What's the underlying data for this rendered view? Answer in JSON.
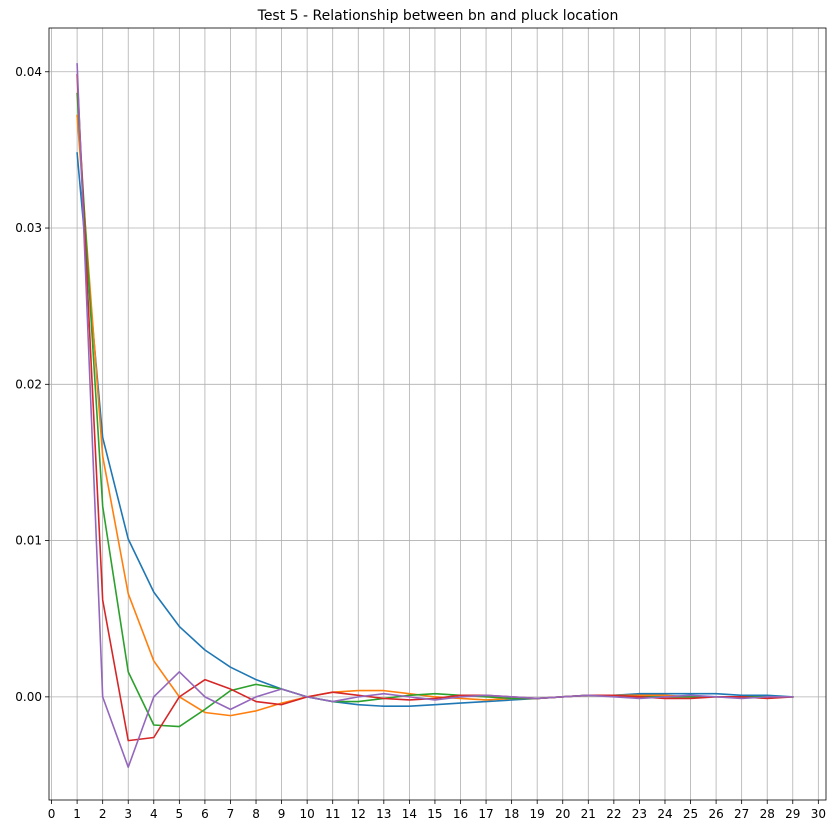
{
  "chart_data": {
    "type": "line",
    "title": "Test 5 - Relationship between bn and pluck location",
    "xlabel": "",
    "ylabel": "",
    "xlim": [
      -0.1,
      30.3
    ],
    "ylim": [
      -0.0066,
      0.0428
    ],
    "x_ticks": [
      0,
      1,
      2,
      3,
      4,
      5,
      6,
      7,
      8,
      9,
      10,
      11,
      12,
      13,
      14,
      15,
      16,
      17,
      18,
      19,
      20,
      21,
      22,
      23,
      24,
      25,
      26,
      27,
      28,
      29,
      30
    ],
    "y_ticks": [
      0.0,
      0.01,
      0.02,
      0.03,
      0.04
    ],
    "y_tick_labels": [
      "0.00",
      "0.01",
      "0.02",
      "0.03",
      "0.04"
    ],
    "grid": true,
    "x": [
      1,
      2,
      3,
      4,
      5,
      6,
      7,
      8,
      9,
      10,
      11,
      12,
      13,
      14,
      15,
      16,
      17,
      18,
      19,
      20,
      21,
      22,
      23,
      24,
      25,
      26,
      27,
      28,
      29
    ],
    "series": [
      {
        "color": "#1f77b4",
        "values": [
          0.0348,
          0.0166,
          0.0101,
          0.0067,
          0.0045,
          0.003,
          0.0019,
          0.0011,
          0.0005,
          0.0,
          -0.0003,
          -0.0005,
          -0.0006,
          -0.0006,
          -0.0005,
          -0.0004,
          -0.0003,
          -0.0002,
          -0.0001,
          0.0,
          0.0001,
          0.0001,
          0.0002,
          0.0002,
          0.0002,
          0.0002,
          0.0001,
          0.0001,
          0.0
        ]
      },
      {
        "color": "#ff7f0e",
        "values": [
          0.0372,
          0.0154,
          0.0066,
          0.0023,
          0.0,
          -0.001,
          -0.0012,
          -0.0009,
          -0.0004,
          0.0,
          0.0003,
          0.0004,
          0.0004,
          0.0002,
          0.0,
          -0.0001,
          -0.0002,
          -0.0001,
          -0.0001,
          0.0,
          0.0001,
          0.0001,
          0.0001,
          0.0001,
          0.0,
          0.0,
          0.0,
          0.0,
          0.0
        ]
      },
      {
        "color": "#2ca02c",
        "values": [
          0.0386,
          0.0122,
          0.0016,
          -0.0018,
          -0.0019,
          -0.0008,
          0.0004,
          0.0008,
          0.0005,
          0.0,
          -0.0003,
          -0.0003,
          -0.0001,
          0.0001,
          0.0002,
          0.0001,
          0.0,
          -0.0001,
          -0.0001,
          0.0,
          0.0001,
          0.0001,
          0.0,
          0.0,
          0.0,
          0.0,
          0.0,
          0.0,
          0.0
        ]
      },
      {
        "color": "#d62728",
        "values": [
          0.0398,
          0.0062,
          -0.0028,
          -0.0026,
          0.0,
          0.0011,
          0.0005,
          -0.0003,
          -0.0005,
          0.0,
          0.0003,
          0.0001,
          -0.0001,
          -0.0002,
          -0.0001,
          0.0001,
          0.0001,
          0.0,
          -0.0001,
          0.0,
          0.0001,
          0.0001,
          0.0,
          -0.0001,
          -0.0001,
          0.0,
          0.0,
          -0.0001,
          0.0
        ]
      },
      {
        "color": "#9467bd",
        "values": [
          0.0405,
          0.0,
          -0.0045,
          0.0,
          0.0016,
          0.0,
          -0.0008,
          0.0,
          0.0005,
          0.0,
          -0.0003,
          0.0,
          0.0002,
          0.0,
          -0.0002,
          0.0,
          0.0001,
          0.0,
          -0.0001,
          0.0,
          0.0001,
          0.0,
          -0.0001,
          0.0,
          0.0001,
          0.0,
          -0.0001,
          0.0,
          0.0
        ]
      }
    ]
  }
}
